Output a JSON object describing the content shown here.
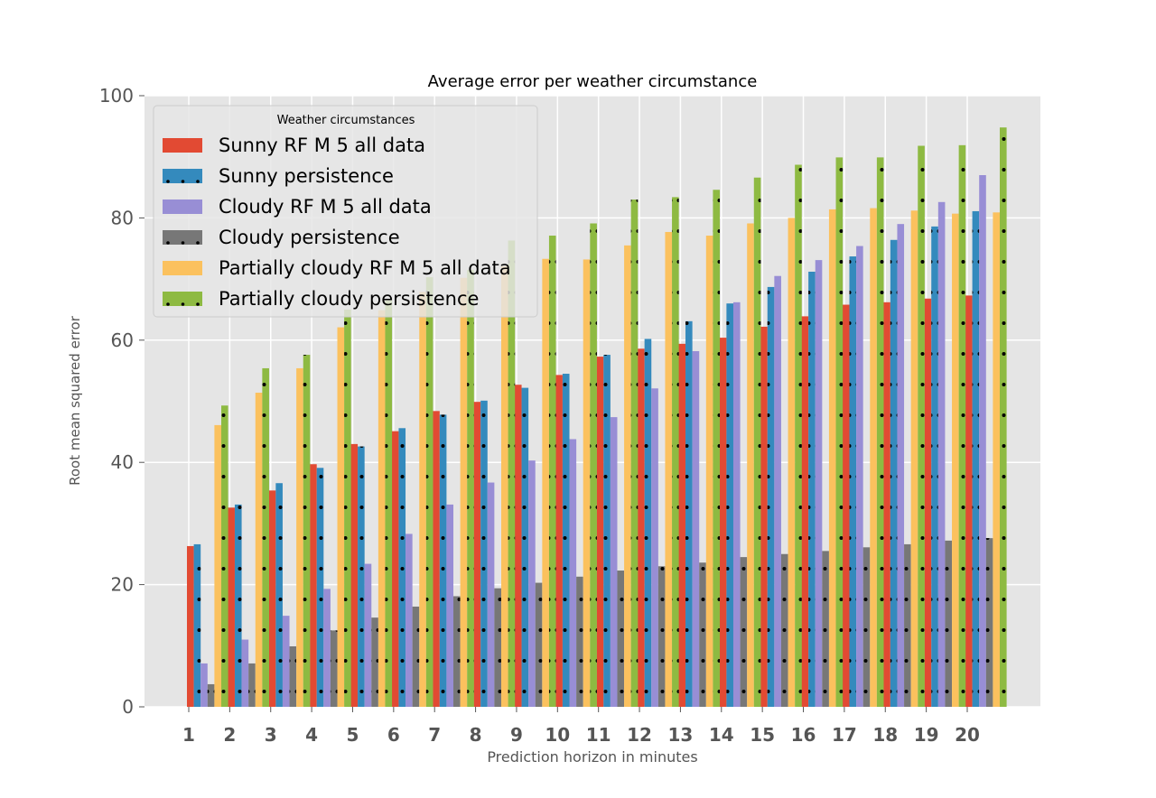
{
  "chart_data": {
    "type": "bar",
    "title": "Average error per weather circumstance",
    "xlabel": "Prediction horizon in minutes",
    "ylabel": "Root mean squared error",
    "ylim": [
      0,
      100
    ],
    "yticks": [
      0,
      20,
      40,
      60,
      80,
      100
    ],
    "grid": true,
    "legend": {
      "title": "Weather circumstances",
      "placement": "top-left"
    },
    "categories": [
      "1",
      "2",
      "3",
      "4",
      "5",
      "6",
      "7",
      "8",
      "9",
      "10",
      "11",
      "12",
      "13",
      "14",
      "15",
      "16",
      "17",
      "18",
      "19",
      "20"
    ],
    "series": [
      {
        "name": "Sunny RF M 5 all data",
        "color": "#E24A33",
        "hatch": "none",
        "values": [
          26.3,
          32.6,
          35.4,
          39.7,
          43.0,
          45.1,
          48.4,
          49.9,
          52.7,
          54.3,
          57.3,
          58.6,
          59.4,
          60.4,
          62.2,
          63.9,
          65.8,
          66.2,
          66.8,
          67.3
        ]
      },
      {
        "name": "Sunny persistence",
        "color": "#348ABD",
        "hatch": "dots",
        "values": [
          26.6,
          33.1,
          36.6,
          39.1,
          42.6,
          45.6,
          47.8,
          50.1,
          52.2,
          54.5,
          57.6,
          60.2,
          63.1,
          66.0,
          68.7,
          71.2,
          73.7,
          76.4,
          78.6,
          81.1
        ]
      },
      {
        "name": "Cloudy RF M 5 all data",
        "color": "#988ED5",
        "hatch": "none",
        "values": [
          7.1,
          11.0,
          14.9,
          19.3,
          23.4,
          28.3,
          33.1,
          36.7,
          40.3,
          43.8,
          47.4,
          52.1,
          58.2,
          66.2,
          70.5,
          73.1,
          75.4,
          79.0,
          82.6,
          87.0
        ]
      },
      {
        "name": "Cloudy persistence",
        "color": "#777777",
        "hatch": "dots",
        "values": [
          3.7,
          7.1,
          9.9,
          12.5,
          14.6,
          16.4,
          18.1,
          19.4,
          20.3,
          21.3,
          22.3,
          23.0,
          23.6,
          24.5,
          25.0,
          25.5,
          26.1,
          26.6,
          27.2,
          27.6
        ]
      },
      {
        "name": "Partially cloudy RF M 5 all data",
        "color": "#FBC15E",
        "hatch": "none",
        "values": [
          46.1,
          51.4,
          55.4,
          62.1,
          64.9,
          67.9,
          70.2,
          72.1,
          73.3,
          73.2,
          75.5,
          77.7,
          77.1,
          79.1,
          80.0,
          81.4,
          81.6,
          81.2,
          80.7,
          80.9
        ]
      },
      {
        "name": "Partially cloudy persistence",
        "color": "#8EBA42",
        "hatch": "dots",
        "values": [
          49.3,
          55.4,
          57.6,
          65.0,
          66.5,
          70.3,
          71.5,
          76.3,
          77.1,
          79.1,
          83.0,
          83.4,
          84.6,
          86.6,
          88.7,
          89.9,
          89.9,
          91.8,
          91.9,
          94.8
        ]
      }
    ]
  }
}
